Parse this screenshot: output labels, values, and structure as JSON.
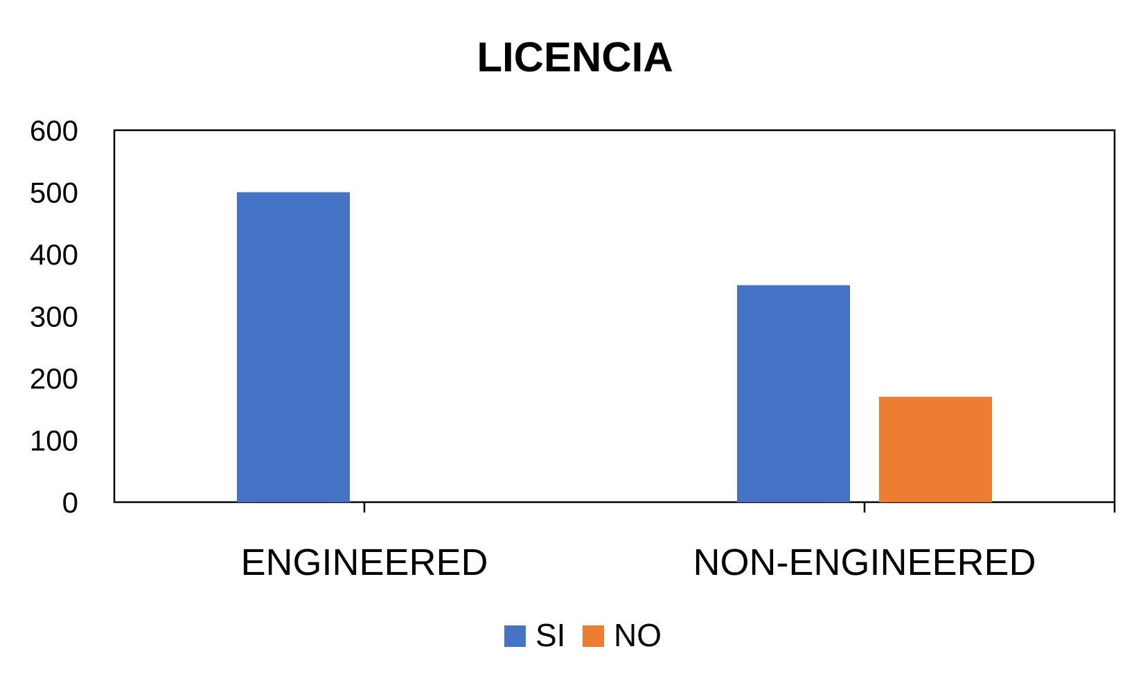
{
  "chart_data": {
    "type": "bar",
    "title": "LICENCIA",
    "xlabel": "",
    "ylabel": "",
    "categories": [
      "ENGINEERED",
      "NON-ENGINEERED"
    ],
    "series": [
      {
        "name": "SI",
        "color": "#4472C4",
        "values": [
          500,
          350
        ]
      },
      {
        "name": "NO",
        "color": "#ED7D31",
        "values": [
          0,
          170
        ]
      }
    ],
    "ylim": [
      0,
      600
    ],
    "yticks": [
      "0",
      "100",
      "200",
      "300",
      "400",
      "500",
      "600"
    ],
    "grid": false,
    "legend_position": "bottom"
  }
}
